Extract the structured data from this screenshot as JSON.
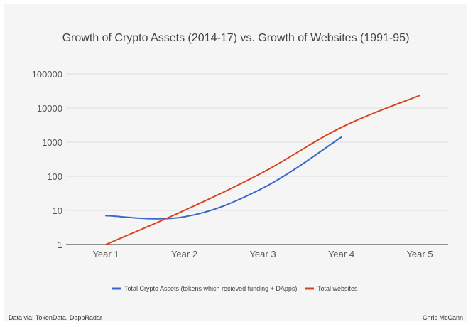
{
  "chart_data": {
    "type": "line",
    "title": "Growth of Crypto Assets (2014-17) vs. Growth of Websites (1991-95)",
    "categories": [
      "Year 1",
      "Year 2",
      "Year 3",
      "Year 4",
      "Year 5"
    ],
    "y_scale": "log",
    "y_ticks": [
      1,
      10,
      100,
      1000,
      10000,
      100000
    ],
    "y_tick_labels": [
      "1",
      "10",
      "100",
      "1000",
      "10000",
      "100000"
    ],
    "ylim": [
      1,
      100000
    ],
    "grid": true,
    "legend_position": "bottom",
    "series": [
      {
        "name": "Total Crypto Assets (tokens which recieved funding + DApps)",
        "color": "#3b67c9",
        "values": [
          7,
          6.5,
          45,
          1400,
          null
        ]
      },
      {
        "name": "Total websites",
        "color": "#d9441c",
        "values": [
          1,
          10,
          130,
          2700,
          23500
        ]
      }
    ]
  },
  "footer": {
    "source": "Data via: TokenData, DappRadar",
    "author": "Chris McCann"
  }
}
